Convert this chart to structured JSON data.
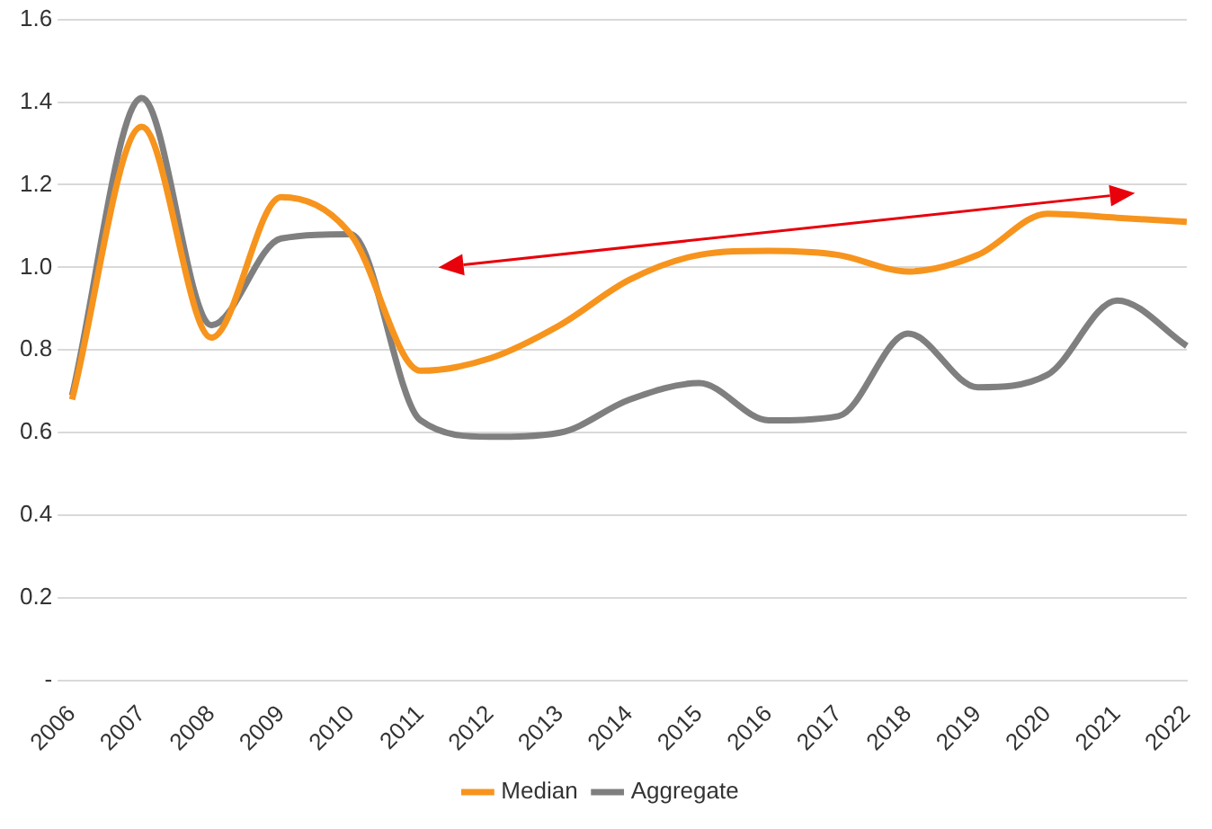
{
  "chart_data": {
    "type": "line",
    "categories": [
      "2006",
      "2007",
      "2008",
      "2009",
      "2010",
      "2011",
      "2012",
      "2013",
      "2014",
      "2015",
      "2016",
      "2017",
      "2018",
      "2019",
      "2020",
      "2021",
      "2022"
    ],
    "series": [
      {
        "name": "Median",
        "color": "#f7941d",
        "values": [
          0.68,
          1.34,
          0.83,
          1.17,
          1.08,
          0.75,
          0.78,
          0.86,
          0.97,
          1.03,
          1.04,
          1.03,
          0.99,
          1.03,
          1.13,
          1.12,
          1.11
        ]
      },
      {
        "name": "Aggregate",
        "color": "#7f7f7f",
        "values": [
          0.69,
          1.41,
          0.86,
          1.07,
          1.08,
          0.63,
          0.59,
          0.6,
          0.68,
          0.72,
          0.63,
          0.64,
          0.84,
          0.71,
          0.74,
          0.92,
          0.81
        ]
      }
    ],
    "ylim": [
      0,
      1.6
    ],
    "yticks": [
      {
        "value": 0,
        "label": "-"
      },
      0.2,
      0.4,
      0.6,
      0.8,
      {
        "value": 1,
        "label": "1.0"
      },
      1.2,
      1.4,
      1.6
    ],
    "grid": "y",
    "legend": "bottom",
    "marker": "none",
    "line_style": "solid"
  }
}
